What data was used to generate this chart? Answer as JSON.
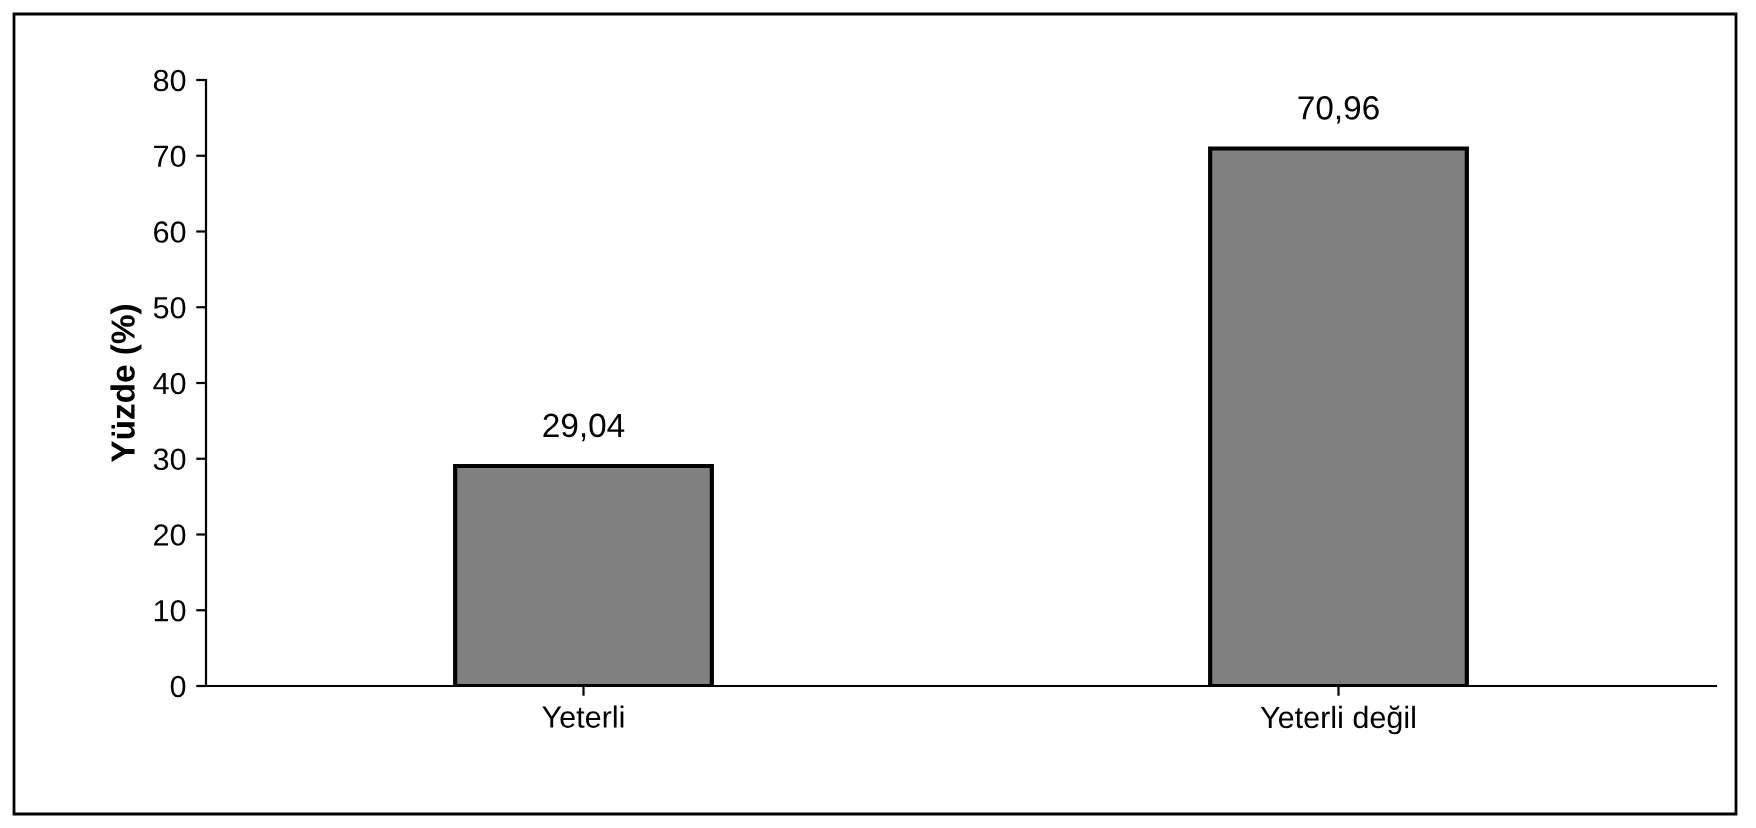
{
  "chart_data": {
    "type": "bar",
    "ylabel": "Yüzde (%)",
    "categories": [
      "Yeterli",
      "Yeterli değil"
    ],
    "values": [
      29.04,
      70.96
    ],
    "value_labels": [
      "29,04",
      "70,96"
    ],
    "color": "#808080",
    "ylim": [
      0,
      80
    ],
    "yticks": [
      0,
      10,
      20,
      30,
      40,
      50,
      60,
      70,
      80
    ],
    "grid": false,
    "legend": false
  }
}
